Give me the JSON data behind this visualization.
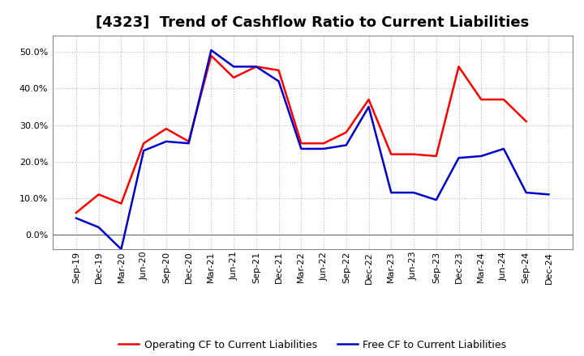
{
  "title": "[4323]  Trend of Cashflow Ratio to Current Liabilities",
  "x_labels": [
    "Sep-19",
    "Dec-19",
    "Mar-20",
    "Jun-20",
    "Sep-20",
    "Dec-20",
    "Mar-21",
    "Jun-21",
    "Sep-21",
    "Dec-21",
    "Mar-22",
    "Jun-22",
    "Sep-22",
    "Dec-22",
    "Mar-23",
    "Jun-23",
    "Sep-23",
    "Dec-23",
    "Mar-24",
    "Jun-24",
    "Sep-24",
    "Dec-24"
  ],
  "operating_cf": [
    0.06,
    0.11,
    0.085,
    0.25,
    0.29,
    0.255,
    0.49,
    0.43,
    0.46,
    0.45,
    0.25,
    0.25,
    0.28,
    0.37,
    0.22,
    0.22,
    0.215,
    0.46,
    0.37,
    0.37,
    0.31,
    null
  ],
  "free_cf": [
    0.045,
    0.02,
    -0.04,
    0.23,
    0.255,
    0.25,
    0.505,
    0.46,
    0.46,
    0.42,
    0.235,
    0.235,
    0.245,
    0.35,
    0.115,
    0.115,
    0.095,
    0.21,
    0.215,
    0.235,
    0.115,
    0.11
  ],
  "ylim": [
    -0.04,
    0.545
  ],
  "yticks": [
    0.0,
    0.1,
    0.2,
    0.3,
    0.4,
    0.5
  ],
  "operating_color": "#ff0000",
  "free_color": "#0000cc",
  "background_color": "#ffffff",
  "grid_color": "#bbbbbb",
  "legend_operating": "Operating CF to Current Liabilities",
  "legend_free": "Free CF to Current Liabilities",
  "title_fontsize": 13,
  "tick_fontsize": 8,
  "legend_fontsize": 9
}
